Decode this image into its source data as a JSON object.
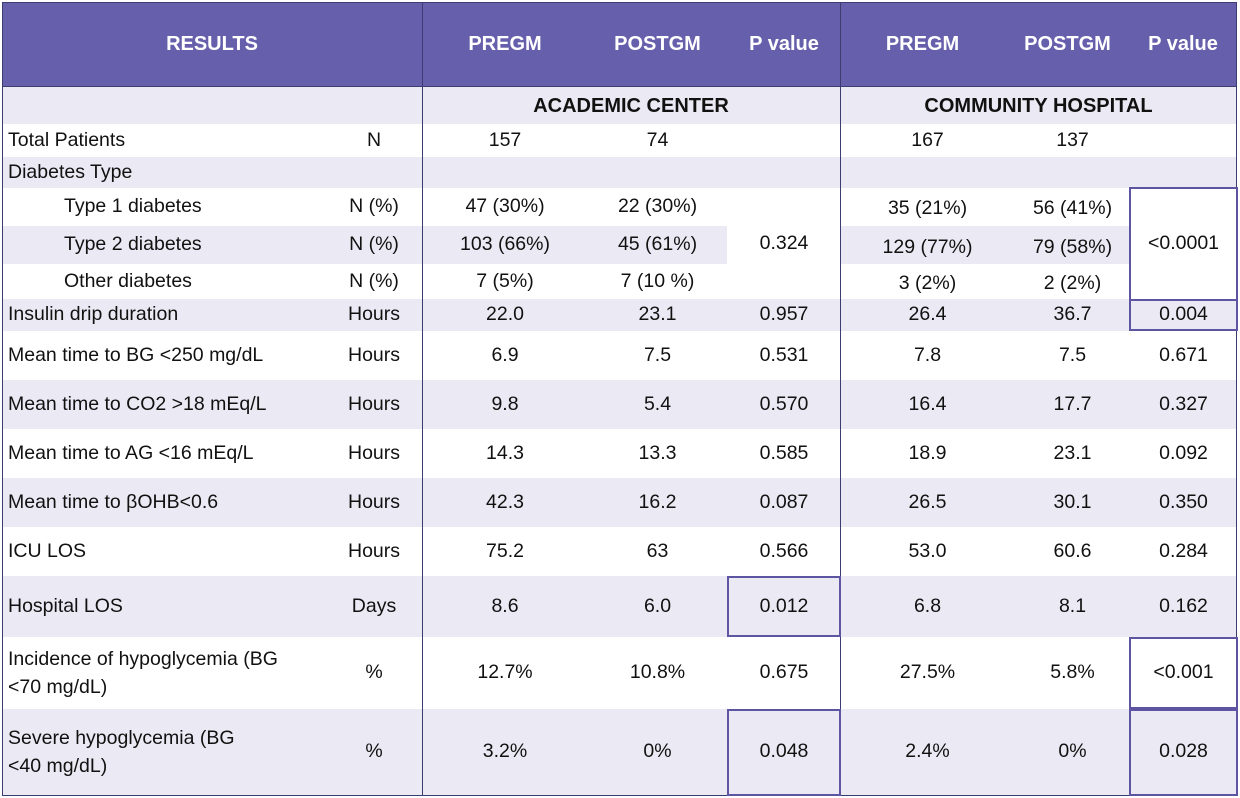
{
  "header": {
    "results": "RESULTS",
    "pregm_1": "PREGM",
    "postgm_1": "POSTGM",
    "pvalue_1": "P value",
    "pregm_2": "PREGM",
    "postgm_2": "POSTGM",
    "pvalue_2": "P value"
  },
  "sections": {
    "academic": "ACADEMIC CENTER",
    "community": "COMMUNITY HOSPITAL"
  },
  "rows": {
    "total_patients": {
      "label": "Total  Patients",
      "unit": "N",
      "ac_pre": "157",
      "ac_post": "74",
      "ch_pre": "167",
      "ch_post": "137"
    },
    "diabetes_type": {
      "label": "Diabetes Type"
    },
    "type1": {
      "label": "Type 1 diabetes",
      "unit": "N (%)",
      "ac_pre": "47 (30%)",
      "ac_post": "22 (30%)",
      "ch_pre": "35 (21%)",
      "ch_post": "56 (41%)"
    },
    "type2": {
      "label": "Type 2 diabetes",
      "unit": "N (%)",
      "ac_pre": "103 (66%)",
      "ac_post": "45 (61%)",
      "ch_pre": "129 (77%)",
      "ch_post": "79 (58%)"
    },
    "other": {
      "label": "Other diabetes",
      "unit": "N (%)",
      "ac_pre": "7 (5%)",
      "ac_post": "7 (10 %)",
      "ch_pre": "3 (2%)",
      "ch_post": "2 (2%)"
    },
    "diabetes_p": {
      "ac": "0.324",
      "ch": "<0.0001"
    },
    "insulin": {
      "label": "Insulin drip duration",
      "unit": "Hours",
      "ac_pre": "22.0",
      "ac_post": "23.1",
      "ac_p": "0.957",
      "ch_pre": "26.4",
      "ch_post": "36.7",
      "ch_p": "0.004"
    },
    "bg250": {
      "label": "Mean time to BG <250 mg/dL",
      "unit": "Hours",
      "ac_pre": "6.9",
      "ac_post": "7.5",
      "ac_p": "0.531",
      "ch_pre": "7.8",
      "ch_post": "7.5",
      "ch_p": "0.671"
    },
    "co2": {
      "label": "Mean time to CO2 >18 mEq/L",
      "unit": "Hours",
      "ac_pre": "9.8",
      "ac_post": "5.4",
      "ac_p": "0.570",
      "ch_pre": "16.4",
      "ch_post": "17.7",
      "ch_p": "0.327"
    },
    "ag": {
      "label": "Mean time to AG <16 mEq/L",
      "unit": "Hours",
      "ac_pre": "14.3",
      "ac_post": "13.3",
      "ac_p": "0.585",
      "ch_pre": "18.9",
      "ch_post": "23.1",
      "ch_p": "0.092"
    },
    "bohb": {
      "label": "Mean time to βOHB<0.6",
      "unit": "Hours",
      "ac_pre": "42.3",
      "ac_post": "16.2",
      "ac_p": "0.087",
      "ch_pre": "26.5",
      "ch_post": "30.1",
      "ch_p": "0.350"
    },
    "icu_los": {
      "label": "ICU LOS",
      "unit": "Hours",
      "ac_pre": "75.2",
      "ac_post": "63",
      "ac_p": "0.566",
      "ch_pre": "53.0",
      "ch_post": "60.6",
      "ch_p": "0.284"
    },
    "hosp_los": {
      "label": "Hospital LOS",
      "unit": "Days",
      "ac_pre": "8.6",
      "ac_post": "6.0",
      "ac_p": "0.012",
      "ch_pre": "6.8",
      "ch_post": "8.1",
      "ch_p": "0.162"
    },
    "hypo": {
      "label": "Incidence of hypoglycemia (BG <70 mg/dL)",
      "unit": "%",
      "ac_pre": "12.7%",
      "ac_post": "10.8%",
      "ac_p": "0.675",
      "ch_pre": "27.5%",
      "ch_post": "5.8%",
      "ch_p": "<0.001"
    },
    "severe": {
      "label": "Severe hypoglycemia (BG <40 mg/dL)",
      "unit": "%",
      "ac_pre": "3.2%",
      "ac_post": "0%",
      "ac_p": "0.048",
      "ch_pre": "2.4%",
      "ch_post": "0%",
      "ch_p": "0.028"
    }
  }
}
